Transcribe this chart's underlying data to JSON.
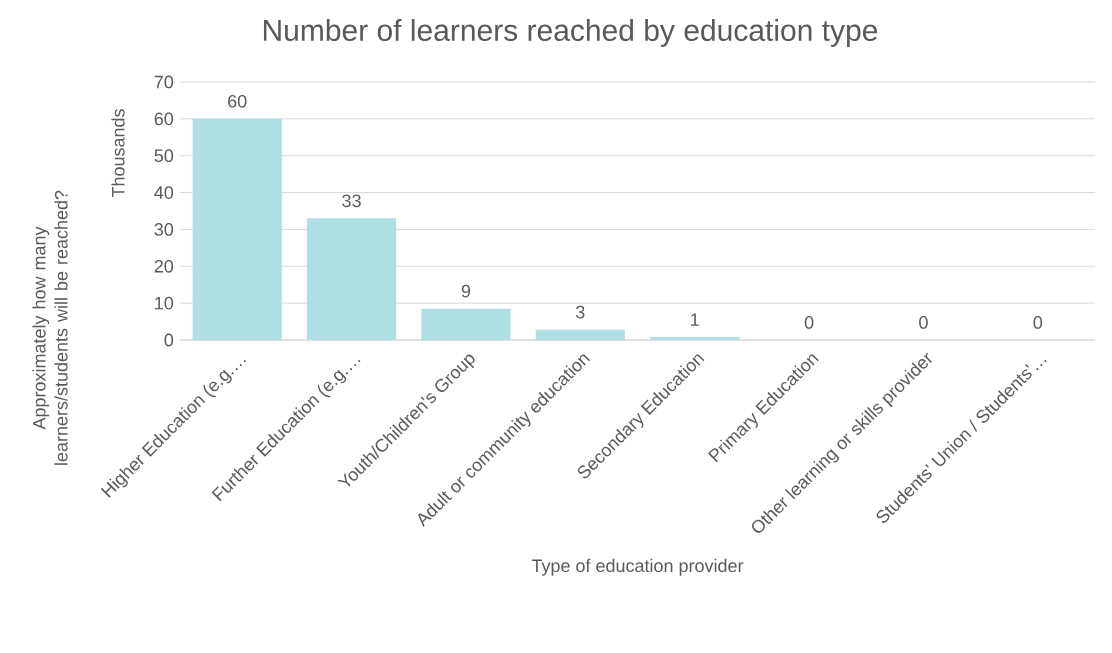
{
  "chart_data": {
    "type": "bar",
    "title": "Number of learners reached by education type",
    "xlabel": "Type of education provider",
    "ylabel": "Approximately how many learners/students will be reached?",
    "annotations": [
      "Thousands"
    ],
    "categories": [
      "Higher Education (e.g.…",
      "Further Education (e.g.…",
      "Youth/Children's Group",
      "Adult or community education",
      "Secondary Education",
      "Primary Education",
      "Other learning or skills provider",
      "Students' Union / Students'…"
    ],
    "values": [
      60,
      33,
      8.5,
      2.8,
      0.8,
      0,
      0,
      0
    ],
    "value_labels": [
      "60",
      "33",
      "9",
      "3",
      "1",
      "0",
      "0",
      "0"
    ],
    "color": "#b0dfe3",
    "ylim": [
      0,
      70
    ],
    "yticks": [
      0,
      10,
      20,
      30,
      40,
      50,
      60,
      70
    ],
    "grid": "y"
  }
}
